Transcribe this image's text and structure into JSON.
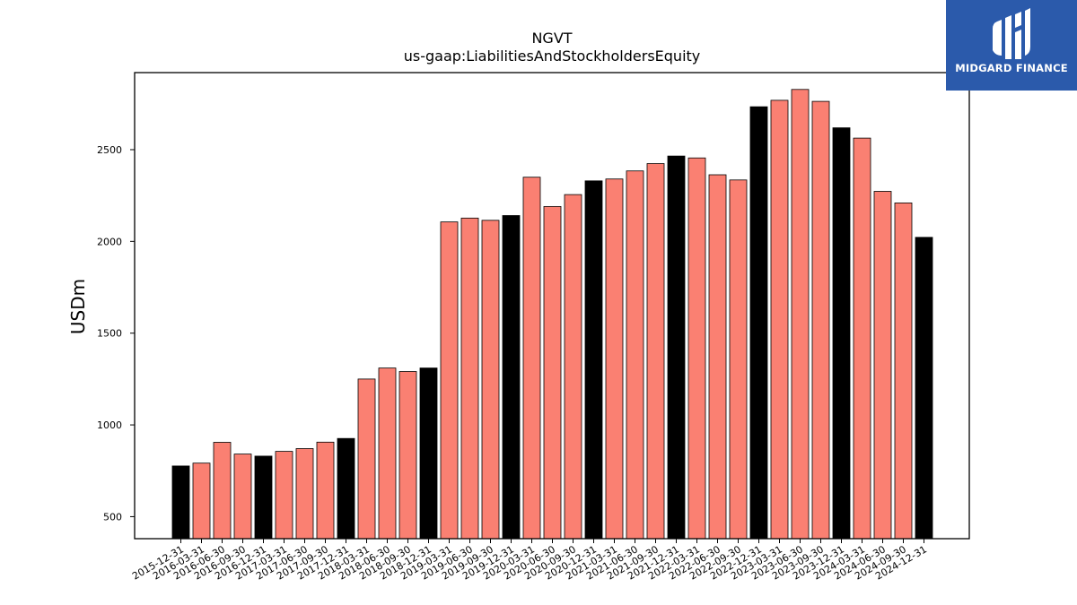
{
  "brand": {
    "name": "MIDGARD FINANCE",
    "color": "#2b5aab",
    "icon": "midgard-logo-icon"
  },
  "chart_data": {
    "type": "bar",
    "title": "NGVT",
    "subtitle": "us-gaap:LiabilitiesAndStockholdersEquity",
    "xlabel": "",
    "ylabel": "USDm",
    "ylim": [
      380,
      2920
    ],
    "yticks": [
      500,
      1000,
      1500,
      2000,
      2500
    ],
    "grid": false,
    "categories": [
      "2015-12-31",
      "2016-03-31",
      "2016-06-30",
      "2016-09-30",
      "2016-12-31",
      "2017-03-31",
      "2017-06-30",
      "2017-09-30",
      "2017-12-31",
      "2018-03-31",
      "2018-06-30",
      "2018-09-30",
      "2018-12-31",
      "2019-03-31",
      "2019-06-30",
      "2019-09-30",
      "2019-12-31",
      "2020-03-31",
      "2020-06-30",
      "2020-09-30",
      "2020-12-31",
      "2021-03-31",
      "2021-06-30",
      "2021-09-30",
      "2021-12-31",
      "2022-03-31",
      "2022-06-30",
      "2022-09-30",
      "2022-12-31",
      "2023-03-31",
      "2023-06-30",
      "2023-09-30",
      "2023-12-31",
      "2024-03-31",
      "2024-06-30",
      "2024-09-30",
      "2024-12-31"
    ],
    "values": [
      776,
      792,
      905,
      841,
      830,
      856,
      871,
      906,
      926,
      1250,
      1310,
      1291,
      1310,
      2106,
      2127,
      2115,
      2141,
      2350,
      2190,
      2255,
      2330,
      2340,
      2384,
      2424,
      2465,
      2455,
      2363,
      2335,
      2734,
      2769,
      2828,
      2763,
      2619,
      2563,
      2273,
      2210,
      2022
    ],
    "colors": {
      "annual": "#000000",
      "quarterly": "#fa8072",
      "edge": "#000000"
    },
    "annual_pattern": "12-31"
  }
}
